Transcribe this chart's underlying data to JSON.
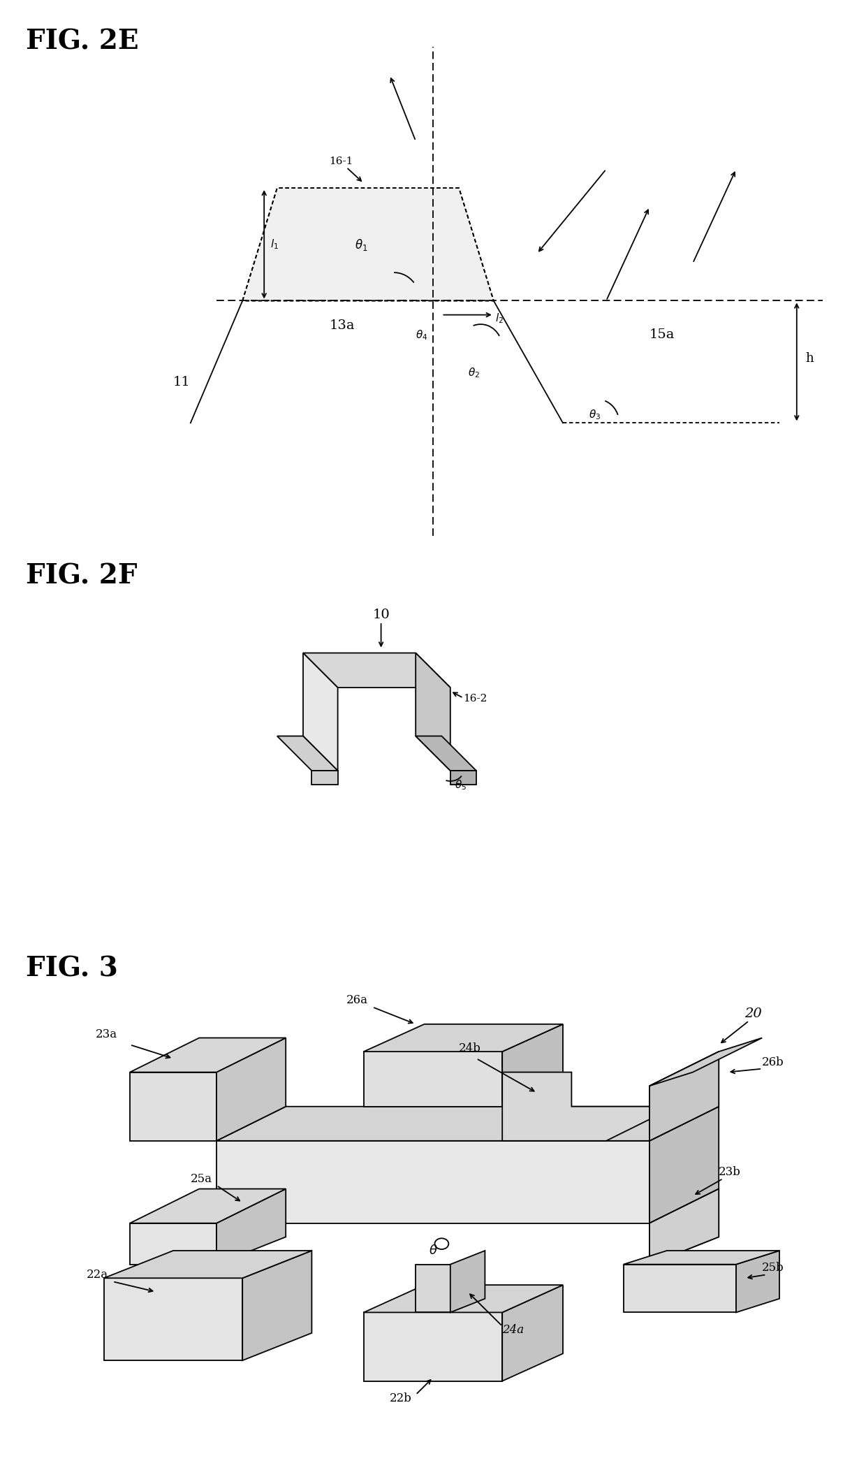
{
  "fig_title_2e": "FIG. 2E",
  "fig_title_2f": "FIG. 2F",
  "fig_title_3": "FIG. 3",
  "bg_color": "#ffffff",
  "line_color": "#000000",
  "font_family": "serif"
}
